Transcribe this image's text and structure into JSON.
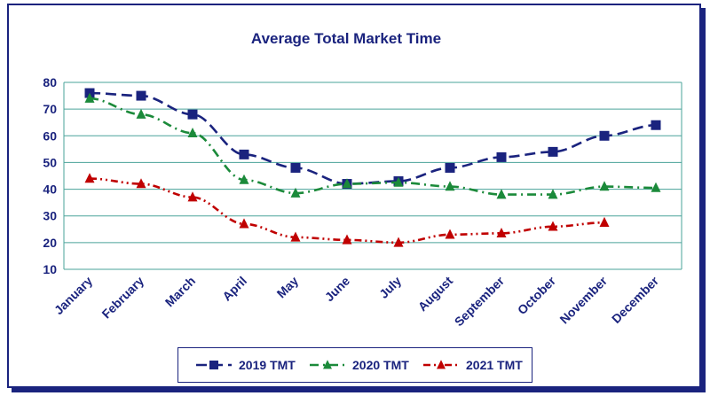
{
  "chart_data": {
    "type": "line",
    "title": "Average Total Market Time",
    "xlabel": "",
    "ylabel": "",
    "categories": [
      "January",
      "February",
      "March",
      "April",
      "May",
      "June",
      "July",
      "August",
      "September",
      "October",
      "November",
      "December"
    ],
    "ylim": [
      10,
      80
    ],
    "yticks": [
      10,
      20,
      30,
      40,
      50,
      60,
      70,
      80
    ],
    "grid": "horizontal",
    "legend_position": "bottom",
    "series": [
      {
        "name": "2019 TMT",
        "color": "#1a237e",
        "marker": "square",
        "dash": "dashed",
        "values": [
          76,
          75,
          68,
          53,
          48,
          42,
          43,
          48,
          52,
          54,
          60,
          64
        ]
      },
      {
        "name": "2020 TMT",
        "color": "#1b8a3a",
        "marker": "triangle",
        "dash": "dash-dot",
        "values": [
          74,
          68,
          61,
          43.5,
          38.5,
          42,
          42.5,
          41,
          38,
          38,
          41,
          40.5
        ]
      },
      {
        "name": "2021 TMT",
        "color": "#c00000",
        "marker": "triangle",
        "dash": "dash-dot-dot",
        "values": [
          44,
          42,
          37,
          27,
          22,
          21,
          20,
          23,
          23.5,
          26,
          27.5,
          null
        ]
      }
    ]
  },
  "colors": {
    "frame": "#1a237e",
    "grid": "#4aa39a",
    "text": "#1a237e"
  }
}
